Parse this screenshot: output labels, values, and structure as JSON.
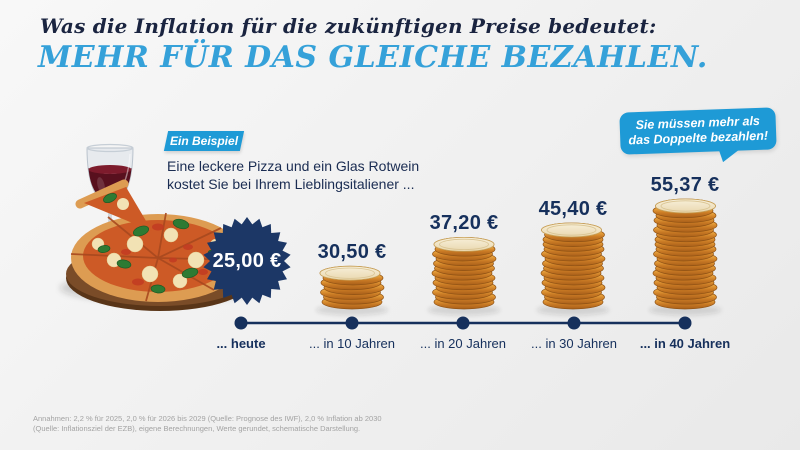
{
  "header": {
    "kicker": "Was die Inflation für die zukünftigen Preise bedeutet:",
    "headline": "MEHR FÜR DAS GLEICHE BEZAHLEN."
  },
  "example": {
    "badge_label": "Ein Beispiel",
    "description_line1": "Eine leckere Pizza und ein Glas Rotwein",
    "description_line2": "kostet Sie bei Ihrem Lieblingsitaliener ..."
  },
  "callout": {
    "line1": "Sie müssen mehr als",
    "line2": "das Doppelte bezahlen!"
  },
  "chart_data": {
    "type": "bar",
    "categories": [
      "... heute",
      "... in 10 Jahren",
      "... in 20 Jahren",
      "... in 30 Jahren",
      "... in 40 Jahren"
    ],
    "values": [
      25.0,
      30.5,
      37.2,
      45.4,
      55.37
    ],
    "value_labels": [
      "25,00 €",
      "30,50 €",
      "37,20 €",
      "45,40 €",
      "55,37 €"
    ],
    "unit": "€",
    "coin_counts": [
      0,
      7,
      13,
      16,
      21
    ],
    "emphasized_categories": [
      0,
      4
    ],
    "legend": "none",
    "axes": "schematic timeline, no numeric axis"
  },
  "footnote": {
    "line1": "Annahmen: 2,2 % für 2025, 2,0 % für 2026 bis 2029 (Quelle: Prognose des IWF), 2,0 % Inflation ab 2030",
    "line2": "(Quelle: Inflationsziel der EZB), eigene Berechnungen, Werte gerundet, schematische Darstellung."
  },
  "colors": {
    "navy": "#16305c",
    "starburst_navy": "#1c3766",
    "text_navy": "#1a2c52",
    "accent_blue": "#1e9ad6",
    "headline_blue": "#35a1d9",
    "coin_gold": "#e8a23d",
    "background": "#f1f1f1"
  }
}
